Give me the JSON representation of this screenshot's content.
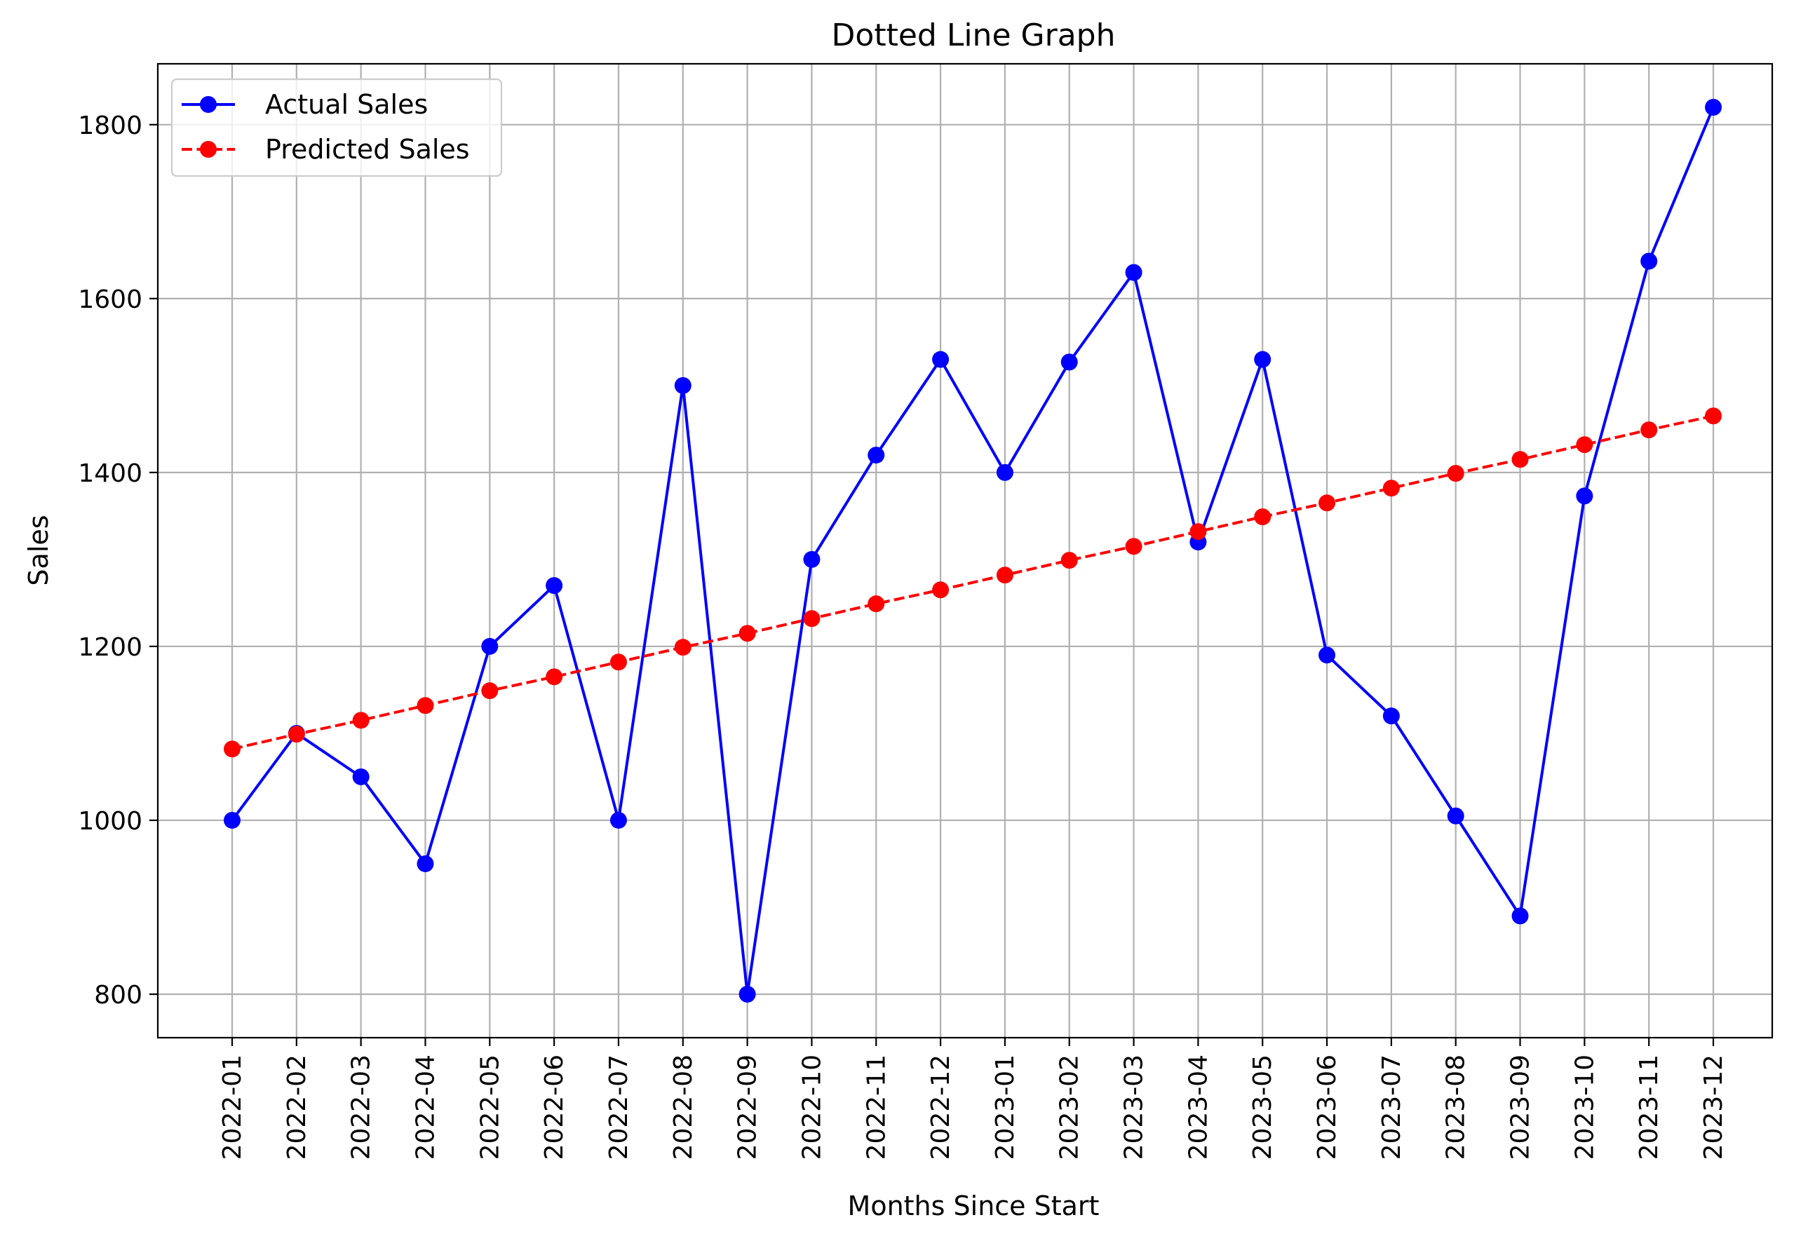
{
  "chart_data": {
    "type": "line",
    "title": "Dotted Line Graph",
    "xlabel": "Months Since Start",
    "ylabel": "Sales",
    "categories": [
      "2022-01",
      "2022-02",
      "2022-03",
      "2022-04",
      "2022-05",
      "2022-06",
      "2022-07",
      "2022-08",
      "2022-09",
      "2022-10",
      "2022-11",
      "2022-12",
      "2023-01",
      "2023-02",
      "2023-03",
      "2023-04",
      "2023-05",
      "2023-06",
      "2023-07",
      "2023-08",
      "2023-09",
      "2023-10",
      "2023-11",
      "2023-12"
    ],
    "ylim": [
      750,
      1870
    ],
    "yticks": [
      800,
      1000,
      1200,
      1400,
      1600,
      1800
    ],
    "grid": true,
    "legend_position": "top-left",
    "series": [
      {
        "name": "Actual Sales",
        "color": "#0000ff",
        "line_style": "solid",
        "marker": "circle",
        "values": [
          1000,
          1100,
          1050,
          950,
          1200,
          1270,
          1000,
          1500,
          800,
          1300,
          1420,
          1530,
          1400,
          1527,
          1630,
          1320,
          1530,
          1190,
          1120,
          1005,
          890,
          1373,
          1643,
          1820
        ]
      },
      {
        "name": "Predicted Sales",
        "color": "#ff0000",
        "line_style": "dashed",
        "marker": "circle",
        "values": [
          1082,
          1099,
          1115,
          1132,
          1149,
          1165,
          1182,
          1199,
          1215,
          1232,
          1249,
          1265,
          1282,
          1299,
          1315,
          1332,
          1349,
          1365,
          1382,
          1399,
          1415,
          1432,
          1449,
          1465
        ]
      }
    ]
  }
}
